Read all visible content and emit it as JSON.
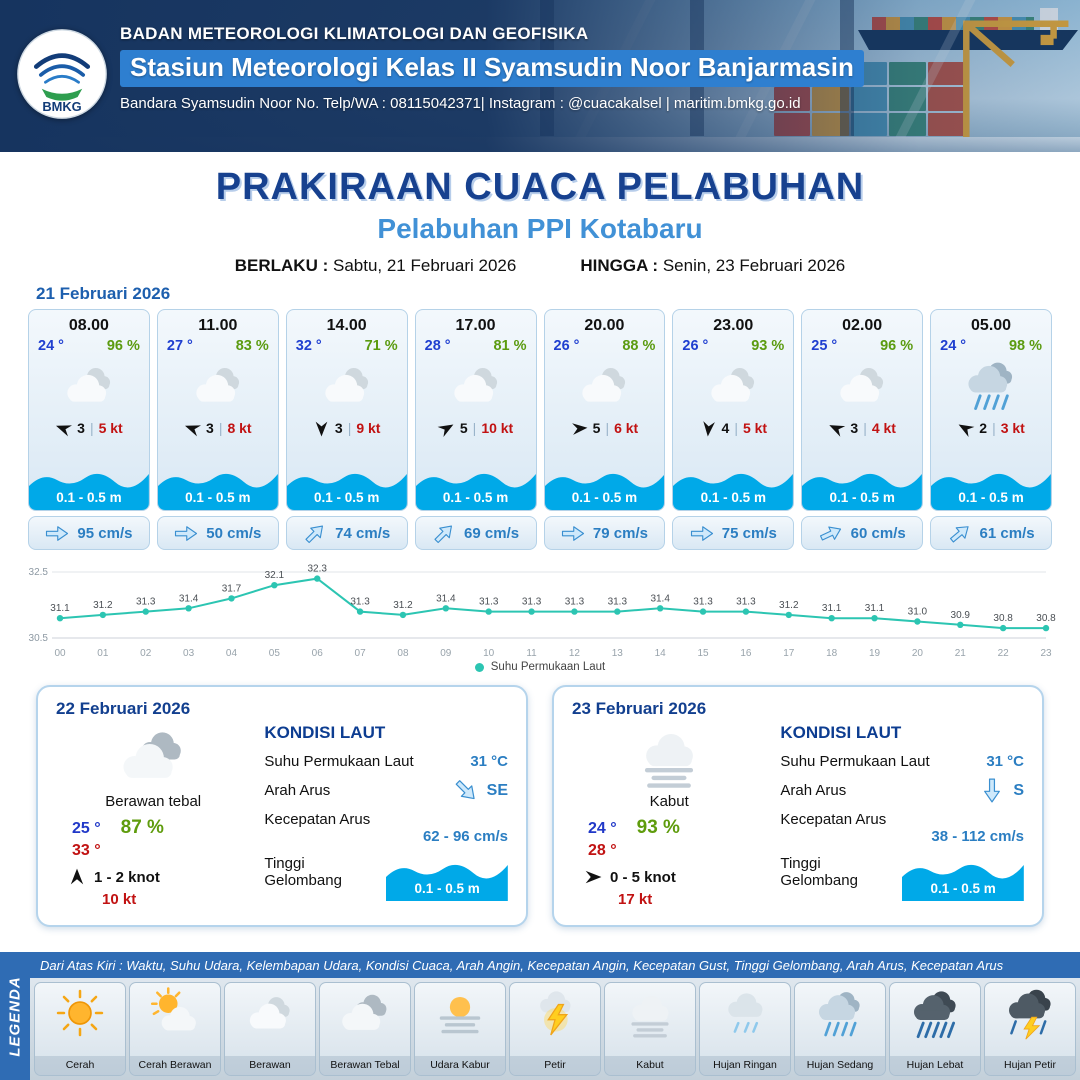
{
  "header": {
    "org": "BADAN METEOROLOGI KLIMATOLOGI DAN GEOFISIKA",
    "station": "Stasiun Meteorologi Kelas II Syamsudin Noor Banjarmasin",
    "contact": "Bandara Syamsudin Noor No. Telp/WA : 08115042371| Instagram : @cuacakalsel | maritim.bmkg.go.id",
    "logo_text": "BMKG"
  },
  "title": {
    "main": "PRAKIRAAN CUACA PELABUHAN",
    "sub": "Pelabuhan PPI Kotabaru",
    "berlaku_label": "BERLAKU :",
    "berlaku_value": "Sabtu, 21 Februari 2026",
    "hingga_label": "HINGGA :",
    "hingga_value": "Senin, 23 Februari 2026"
  },
  "day1": {
    "date": "21 Februari 2026",
    "cards": [
      {
        "time": "08.00",
        "temp": "24 °",
        "humidity": "96 %",
        "weather_icon": "berawan",
        "wind_dir_deg": 200,
        "wind_speed": "3",
        "gust": "5 kt",
        "wave": "0.1 - 0.5 m",
        "current_dir_deg": 0,
        "current": "95 cm/s"
      },
      {
        "time": "11.00",
        "temp": "27 °",
        "humidity": "83 %",
        "weather_icon": "berawan",
        "wind_dir_deg": 200,
        "wind_speed": "3",
        "gust": "8 kt",
        "wave": "0.1 - 0.5 m",
        "current_dir_deg": 0,
        "current": "50 cm/s"
      },
      {
        "time": "14.00",
        "temp": "32 °",
        "humidity": "71 %",
        "weather_icon": "berawan",
        "wind_dir_deg": 90,
        "wind_speed": "3",
        "gust": "9 kt",
        "wave": "0.1 - 0.5 m",
        "current_dir_deg": -45,
        "current": "74 cm/s"
      },
      {
        "time": "17.00",
        "temp": "28 °",
        "humidity": "81 %",
        "weather_icon": "berawan",
        "wind_dir_deg": -30,
        "wind_speed": "5",
        "gust": "10 kt",
        "wave": "0.1 - 0.5 m",
        "current_dir_deg": -45,
        "current": "69 cm/s"
      },
      {
        "time": "20.00",
        "temp": "26 °",
        "humidity": "88 %",
        "weather_icon": "berawan",
        "wind_dir_deg": -5,
        "wind_speed": "5",
        "gust": "6 kt",
        "wave": "0.1 - 0.5 m",
        "current_dir_deg": 0,
        "current": "79 cm/s"
      },
      {
        "time": "23.00",
        "temp": "26 °",
        "humidity": "93 %",
        "weather_icon": "berawan",
        "wind_dir_deg": 95,
        "wind_speed": "4",
        "gust": "5 kt",
        "wave": "0.1 - 0.5 m",
        "current_dir_deg": 0,
        "current": "75 cm/s"
      },
      {
        "time": "02.00",
        "temp": "25 °",
        "humidity": "96 %",
        "weather_icon": "berawan",
        "wind_dir_deg": 205,
        "wind_speed": "3",
        "gust": "4 kt",
        "wave": "0.1 - 0.5 m",
        "current_dir_deg": -25,
        "current": "60 cm/s"
      },
      {
        "time": "05.00",
        "temp": "24 °",
        "humidity": "98 %",
        "weather_icon": "hujan-sedang",
        "wind_dir_deg": 210,
        "wind_speed": "2",
        "gust": "3 kt",
        "wave": "0.1 - 0.5 m",
        "current_dir_deg": -40,
        "current": "61 cm/s"
      }
    ]
  },
  "chart_data": {
    "type": "line",
    "series_name": "Suhu Permukaan Laut",
    "x": [
      "00",
      "01",
      "02",
      "03",
      "04",
      "05",
      "06",
      "07",
      "08",
      "09",
      "10",
      "11",
      "12",
      "13",
      "14",
      "15",
      "16",
      "17",
      "18",
      "19",
      "20",
      "21",
      "22",
      "23"
    ],
    "values": [
      31.1,
      31.2,
      31.3,
      31.4,
      31.7,
      32.1,
      32.3,
      31.3,
      31.2,
      31.4,
      31.3,
      31.3,
      31.3,
      31.3,
      31.4,
      31.3,
      31.3,
      31.2,
      31.1,
      31.1,
      31.0,
      30.9,
      30.8,
      30.8
    ],
    "ylim": [
      30.5,
      32.5
    ],
    "line_color": "#2cc5b2",
    "grid": "horizontal",
    "legend_position": "bottom"
  },
  "day2": {
    "date": "22 Februari 2026",
    "weather_icon": "berawan-tebal",
    "condition": "Berawan tebal",
    "temp_min": "25 °",
    "humidity": "87 %",
    "temp_max": "33 °",
    "wind_dir_deg": -90,
    "wind": "1 - 2 knot",
    "gust": "10 kt",
    "sea": {
      "title": "KONDISI LAUT",
      "sst_label": "Suhu Permukaan Laut",
      "sst": "31 °C",
      "current_dir_label": "Arah Arus",
      "current_dir": "SE",
      "current_dir_deg": 45,
      "current_speed_label": "Kecepatan Arus",
      "current_speed": "62 - 96 cm/s",
      "wave_label": "Tinggi Gelombang",
      "wave": "0.1 - 0.5 m"
    }
  },
  "day3": {
    "date": "23 Februari 2026",
    "weather_icon": "kabut",
    "condition": "Kabut",
    "temp_min": "24 °",
    "humidity": "93 %",
    "temp_max": "28 °",
    "wind_dir_deg": 0,
    "wind": "0 - 5 knot",
    "gust": "17 kt",
    "sea": {
      "title": "KONDISI LAUT",
      "sst_label": "Suhu Permukaan Laut",
      "sst": "31 °C",
      "current_dir_label": "Arah Arus",
      "current_dir": "S",
      "current_dir_deg": 90,
      "current_speed_label": "Kecepatan Arus",
      "current_speed": "38 - 112 cm/s",
      "wave_label": "Tinggi Gelombang",
      "wave": "0.1 - 0.5 m"
    }
  },
  "legend": {
    "title": "LEGENDA",
    "description": "Dari Atas Kiri : Waktu, Suhu Udara, Kelembapan Udara, Kondisi Cuaca, Arah Angin, Kecepatan Angin, Kecepatan Gust, Tinggi Gelombang, Arah Arus, Kecepatan Arus",
    "items": [
      {
        "label": "Cerah",
        "icon": "cerah"
      },
      {
        "label": "Cerah Berawan",
        "icon": "cerah-berawan"
      },
      {
        "label": "Berawan",
        "icon": "berawan"
      },
      {
        "label": "Berawan Tebal",
        "icon": "berawan-tebal"
      },
      {
        "label": "Udara Kabur",
        "icon": "udara-kabur"
      },
      {
        "label": "Petir",
        "icon": "petir"
      },
      {
        "label": "Kabut",
        "icon": "kabut"
      },
      {
        "label": "Hujan Ringan",
        "icon": "hujan-ringan"
      },
      {
        "label": "Hujan Sedang",
        "icon": "hujan-sedang"
      },
      {
        "label": "Hujan Lebat",
        "icon": "hujan-lebat"
      },
      {
        "label": "Hujan Petir",
        "icon": "hujan-petir"
      }
    ]
  }
}
